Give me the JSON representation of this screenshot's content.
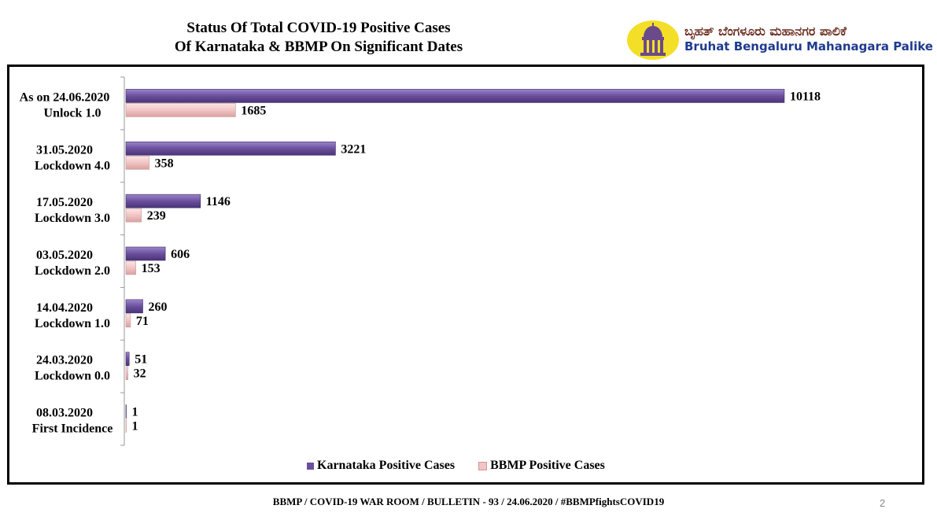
{
  "header": {
    "title_line1": "Status Of Total COVID-19 Positive Cases",
    "title_line2": "Of Karnataka & BBMP On Significant Dates"
  },
  "logo": {
    "kannada": "ಬೃಹತ್ ಬೆಂಗಳೂರು ಮಹಾನಗರ ಪಾಲಿಕೆ",
    "english": "Bruhat Bengaluru Mahanagara Palike"
  },
  "chart_data": {
    "type": "bar",
    "orientation": "horizontal",
    "categories": [
      {
        "date": "As on 24.06.2020",
        "phase": "Unlock 1.0"
      },
      {
        "date": "31.05.2020",
        "phase": "Lockdown 4.0"
      },
      {
        "date": "17.05.2020",
        "phase": "Lockdown 3.0"
      },
      {
        "date": "03.05.2020",
        "phase": "Lockdown 2.0"
      },
      {
        "date": "14.04.2020",
        "phase": "Lockdown 1.0"
      },
      {
        "date": "24.03.2020",
        "phase": "Lockdown 0.0"
      },
      {
        "date": "08.03.2020",
        "phase": "First Incidence"
      }
    ],
    "series": [
      {
        "name": "Karnataka Positive Cases",
        "color": "#6b4f9e",
        "values": [
          10118,
          3221,
          1146,
          606,
          260,
          51,
          1
        ]
      },
      {
        "name": "BBMP Positive Cases",
        "color": "#f2c4c4",
        "values": [
          1685,
          358,
          239,
          153,
          71,
          32,
          1
        ]
      }
    ],
    "xlim": [
      0,
      10300
    ],
    "grid": false,
    "legend_position": "bottom"
  },
  "footer": {
    "text": "BBMP / COVID-19 WAR ROOM / BULLETIN - 93 / 24.06.2020 / #BBMPfightsCOVID19",
    "page": "2"
  }
}
